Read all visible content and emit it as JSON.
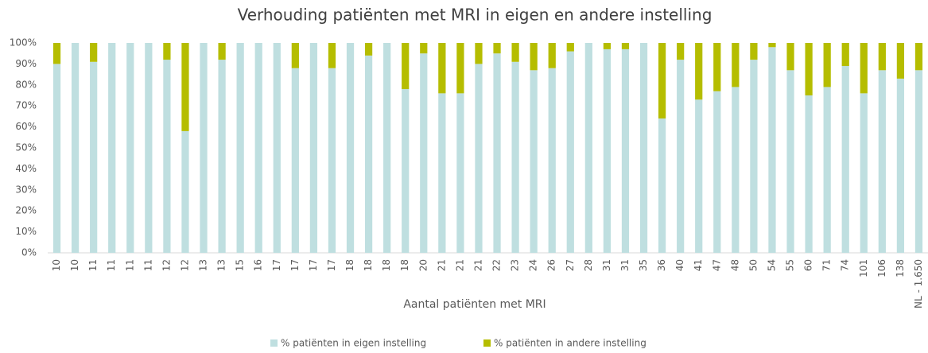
{
  "chart_data": {
    "type": "bar",
    "stacked": true,
    "title": "Verhouding patiënten met MRI in eigen en andere instelling",
    "x_label": "Aantal patiënten met MRI",
    "categories": [
      "10",
      "10",
      "11",
      "11",
      "11",
      "11",
      "12",
      "12",
      "13",
      "13",
      "15",
      "16",
      "17",
      "17",
      "17",
      "17",
      "18",
      "18",
      "18",
      "18",
      "20",
      "21",
      "21",
      "21",
      "22",
      "23",
      "24",
      "26",
      "27",
      "28",
      "31",
      "31",
      "35",
      "36",
      "40",
      "41",
      "47",
      "48",
      "50",
      "54",
      "55",
      "60",
      "71",
      "74",
      "101",
      "106",
      "138",
      "NL - 1.650"
    ],
    "series": [
      {
        "name": "% patiënten in eigen instelling",
        "color": "#bfdfe0",
        "values": [
          90,
          100,
          91,
          100,
          100,
          100,
          92,
          58,
          100,
          92,
          100,
          100,
          100,
          88,
          100,
          88,
          100,
          94,
          100,
          78,
          95,
          76,
          76,
          90,
          95,
          91,
          87,
          88,
          96,
          100,
          97,
          97,
          100,
          64,
          92,
          73,
          77,
          79,
          92,
          98,
          87,
          75,
          79,
          89,
          76,
          87,
          83,
          87
        ]
      },
      {
        "name": "% patiënten in andere instelling",
        "color": "#b5bd00",
        "values": [
          10,
          0,
          9,
          0,
          0,
          0,
          8,
          42,
          0,
          8,
          0,
          0,
          0,
          12,
          0,
          12,
          0,
          6,
          0,
          22,
          5,
          24,
          24,
          10,
          5,
          9,
          13,
          12,
          4,
          0,
          3,
          3,
          0,
          36,
          8,
          27,
          23,
          21,
          8,
          2,
          13,
          25,
          21,
          11,
          24,
          13,
          17,
          13
        ]
      }
    ],
    "ylim": [
      0,
      100
    ],
    "yticks": [
      {
        "value": 0,
        "label": "0%"
      },
      {
        "value": 10,
        "label": "10%"
      },
      {
        "value": 20,
        "label": "20%"
      },
      {
        "value": 30,
        "label": "30%"
      },
      {
        "value": 40,
        "label": "40%"
      },
      {
        "value": 50,
        "label": "50%"
      },
      {
        "value": 60,
        "label": "60%"
      },
      {
        "value": 70,
        "label": "70%"
      },
      {
        "value": 80,
        "label": "80%"
      },
      {
        "value": 90,
        "label": "90%"
      },
      {
        "value": 100,
        "label": "100%"
      }
    ],
    "legend": "bottom"
  }
}
